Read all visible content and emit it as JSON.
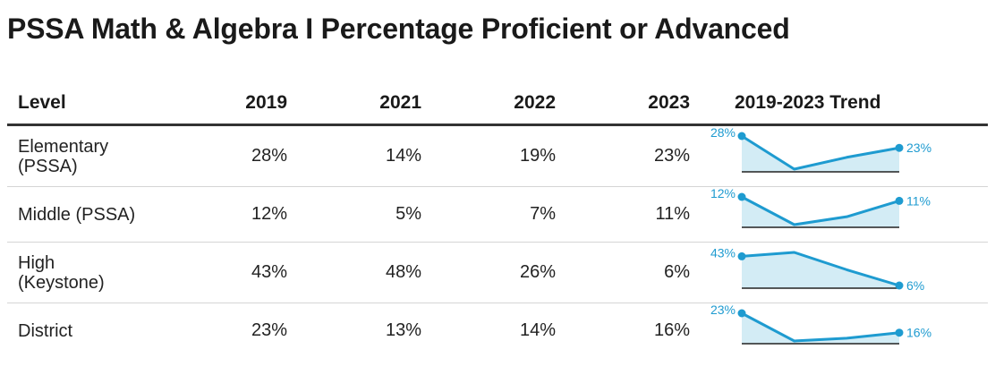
{
  "title": "PSSA Math & Algebra I Percentage Proficient or Advanced",
  "chart_data": {
    "type": "table",
    "columns": [
      "Level",
      "2019",
      "2021",
      "2022",
      "2023",
      "2019-2023 Trend"
    ],
    "years": [
      "2019",
      "2021",
      "2022",
      "2023"
    ],
    "rows": [
      {
        "level": "Elementary\n(PSSA)",
        "values": [
          28,
          14,
          19,
          23
        ],
        "display": [
          "28%",
          "14%",
          "19%",
          "23%"
        ],
        "first_label": "28%",
        "last_label": "23%"
      },
      {
        "level": "Middle (PSSA)",
        "values": [
          12,
          5,
          7,
          11
        ],
        "display": [
          "12%",
          "5%",
          "7%",
          "11%"
        ],
        "first_label": "12%",
        "last_label": "11%"
      },
      {
        "level": "High\n(Keystone)",
        "values": [
          43,
          48,
          26,
          6
        ],
        "display": [
          "43%",
          "48%",
          "26%",
          "6%"
        ],
        "first_label": "43%",
        "last_label": "6%"
      },
      {
        "level": "District",
        "values": [
          23,
          13,
          14,
          16
        ],
        "display": [
          "23%",
          "13%",
          "14%",
          "16%"
        ],
        "first_label": "23%",
        "last_label": "16%"
      }
    ],
    "sparkline_color": "#1e9bd0",
    "sparkline_fill": "#d3ecf5"
  }
}
